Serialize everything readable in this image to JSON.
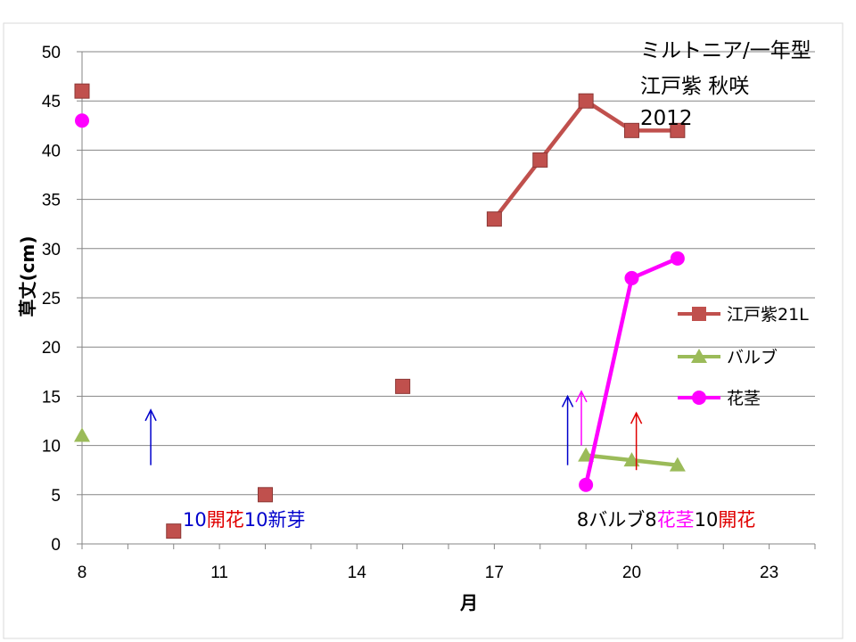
{
  "chart_data": {
    "type": "line",
    "title_lines": [
      "ミルトニア/一年型",
      "江戸紫  秋咲",
      "2012"
    ],
    "xlabel": "月",
    "ylabel": "草丈(cm)",
    "xlim": [
      8,
      24
    ],
    "ylim": [
      0,
      50
    ],
    "x_ticks": [
      8,
      11,
      14,
      17,
      20,
      23
    ],
    "y_ticks": [
      0,
      5,
      10,
      15,
      20,
      25,
      30,
      35,
      40,
      45,
      50
    ],
    "grid": "horizontal",
    "legend_position": "right",
    "series": [
      {
        "name": "江戸紫21L",
        "color": "#c0504d",
        "marker": "square",
        "points": [
          [
            8,
            46
          ],
          [
            10,
            1.3
          ],
          [
            12,
            5
          ],
          [
            15,
            16
          ],
          [
            17,
            33
          ],
          [
            18,
            39
          ],
          [
            19,
            45
          ],
          [
            20,
            42
          ],
          [
            21,
            42
          ]
        ],
        "connected_from_index": 4
      },
      {
        "name": "バルブ",
        "color": "#9bbb59",
        "marker": "triangle",
        "points": [
          [
            8,
            11
          ],
          [
            19,
            9
          ],
          [
            20,
            8.5
          ],
          [
            21,
            8
          ]
        ],
        "connected_from_index": 1
      },
      {
        "name": "花茎",
        "color": "#ff00ff",
        "marker": "circle",
        "points": [
          [
            8,
            43
          ],
          [
            19,
            6
          ],
          [
            20,
            27
          ],
          [
            21,
            29
          ]
        ],
        "connected_from_index": 1
      }
    ],
    "annotations": [
      {
        "x": 10.2,
        "y": 2,
        "parts": [
          {
            "text": "10",
            "color": "#0000cc"
          },
          {
            "text": "開花",
            "color": "#e00000"
          },
          {
            "text": "10新芽",
            "color": "#0000cc"
          }
        ]
      },
      {
        "x": 18.8,
        "y": 2,
        "parts": [
          {
            "text": "8バルブ8",
            "color": "#000000"
          },
          {
            "text": "花茎",
            "color": "#ff00ff"
          },
          {
            "text": "10",
            "color": "#000000"
          },
          {
            "text": "開花",
            "color": "#e00000"
          }
        ]
      }
    ],
    "arrows": [
      {
        "x": 9.5,
        "y_from": 8,
        "y_to": 13.6,
        "color": "#0000cc"
      },
      {
        "x": 18.6,
        "y_from": 8,
        "y_to": 15,
        "color": "#0000cc"
      },
      {
        "x": 18.9,
        "y_from": 10,
        "y_to": 15.5,
        "color": "#ff00ff"
      },
      {
        "x": 20.1,
        "y_from": 7.5,
        "y_to": 13.3,
        "color": "#e00000"
      }
    ]
  }
}
